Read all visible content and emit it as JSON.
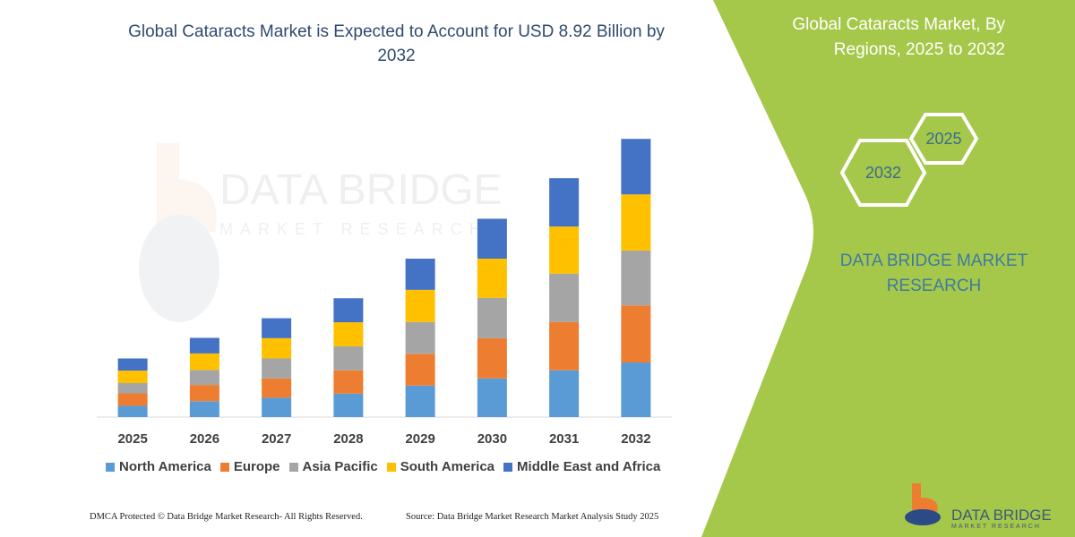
{
  "title": "Global Cataracts Market is Expected to Account for USD 8.92 Billion by 2032",
  "side_panel": {
    "title": "Global Cataracts Market, By Regions, 2025 to 2032",
    "hex_badges": [
      "2025",
      "2032"
    ],
    "brand_text": "DATA BRIDGE MARKET RESEARCH",
    "logo_text": "DATA BRIDGE",
    "logo_subtext": "MARKET RESEARCH",
    "panel_color": "#a5c84a"
  },
  "watermark": {
    "line1": "DATA BRIDGE",
    "line2": "MARKET RESEARCH"
  },
  "footer": {
    "left": "DMCA Protected © Data Bridge Market Research-  All Rights Reserved.",
    "right": "Source: Data Bridge Market Research  Market Analysis Study 2025"
  },
  "chart_data": {
    "type": "bar",
    "stacked": true,
    "title": "Global Cataracts Market is Expected to Account for USD 8.92 Billion by 2032",
    "xlabel": "",
    "ylabel": "",
    "ylim": [
      0,
      9.5
    ],
    "grid": false,
    "legend_position": "bottom",
    "categories": [
      "2025",
      "2026",
      "2027",
      "2028",
      "2029",
      "2030",
      "2031",
      "2032"
    ],
    "series": [
      {
        "name": "North America",
        "color": "#5b9bd5",
        "values": [
          0.36,
          0.51,
          0.62,
          0.75,
          1.01,
          1.24,
          1.5,
          1.75
        ]
      },
      {
        "name": "Europe",
        "color": "#ed7d31",
        "values": [
          0.4,
          0.52,
          0.62,
          0.75,
          1.02,
          1.29,
          1.55,
          1.83
        ]
      },
      {
        "name": "Asia Pacific",
        "color": "#a5a5a5",
        "values": [
          0.33,
          0.48,
          0.64,
          0.77,
          1.02,
          1.29,
          1.55,
          1.76
        ]
      },
      {
        "name": "South America",
        "color": "#ffc000",
        "values": [
          0.4,
          0.53,
          0.65,
          0.77,
          1.03,
          1.26,
          1.51,
          1.8
        ]
      },
      {
        "name": "Middle East and Africa",
        "color": "#4472c4",
        "values": [
          0.39,
          0.5,
          0.64,
          0.77,
          1.0,
          1.28,
          1.55,
          1.78
        ]
      }
    ]
  }
}
